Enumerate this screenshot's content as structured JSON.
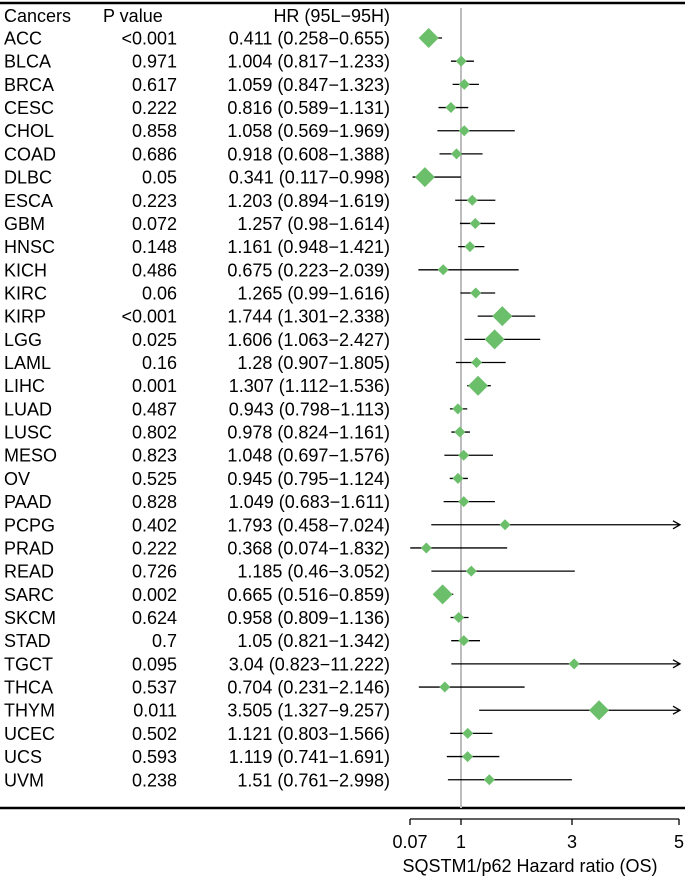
{
  "chart_data": {
    "type": "forest",
    "headers": {
      "cancer": "Cancers",
      "pvalue": "P value",
      "hr": "HR (95L−95H)"
    },
    "xlabel": "SQSTM1/p62 Hazard ratio (OS)",
    "xticks": [
      "0.07",
      "1",
      "3",
      "5"
    ],
    "xlim": [
      0.07,
      5
    ],
    "reference_line": 1,
    "marker_color": "#6cbf6a",
    "rows": [
      {
        "cancer": "ACC",
        "p": "<0.001",
        "hr": 0.411,
        "lower": 0.258,
        "upper": 0.655,
        "hr_text": "0.411 (0.258−0.655)"
      },
      {
        "cancer": "BLCA",
        "p": "0.971",
        "hr": 1.004,
        "lower": 0.817,
        "upper": 1.233,
        "hr_text": "1.004 (0.817−1.233)"
      },
      {
        "cancer": "BRCA",
        "p": "0.617",
        "hr": 1.059,
        "lower": 0.847,
        "upper": 1.323,
        "hr_text": "1.059 (0.847−1.323)"
      },
      {
        "cancer": "CESC",
        "p": "0.222",
        "hr": 0.816,
        "lower": 0.589,
        "upper": 1.131,
        "hr_text": "0.816 (0.589−1.131)"
      },
      {
        "cancer": "CHOL",
        "p": "0.858",
        "hr": 1.058,
        "lower": 0.569,
        "upper": 1.969,
        "hr_text": "1.058 (0.569−1.969)"
      },
      {
        "cancer": "COAD",
        "p": "0.686",
        "hr": 0.918,
        "lower": 0.608,
        "upper": 1.388,
        "hr_text": "0.918 (0.608−1.388)"
      },
      {
        "cancer": "DLBC",
        "p": "0.05",
        "hr": 0.341,
        "lower": 0.117,
        "upper": 0.998,
        "hr_text": "0.341 (0.117−0.998)"
      },
      {
        "cancer": "ESCA",
        "p": "0.223",
        "hr": 1.203,
        "lower": 0.894,
        "upper": 1.619,
        "hr_text": "1.203 (0.894−1.619)"
      },
      {
        "cancer": "GBM",
        "p": "0.072",
        "hr": 1.257,
        "lower": 0.98,
        "upper": 1.614,
        "hr_text": "1.257 (0.98−1.614)"
      },
      {
        "cancer": "HNSC",
        "p": "0.148",
        "hr": 1.161,
        "lower": 0.948,
        "upper": 1.421,
        "hr_text": "1.161 (0.948−1.421)"
      },
      {
        "cancer": "KICH",
        "p": "0.486",
        "hr": 0.675,
        "lower": 0.223,
        "upper": 2.039,
        "hr_text": "0.675 (0.223−2.039)"
      },
      {
        "cancer": "KIRC",
        "p": "0.06",
        "hr": 1.265,
        "lower": 0.99,
        "upper": 1.616,
        "hr_text": "1.265 (0.99−1.616)"
      },
      {
        "cancer": "KIRP",
        "p": "<0.001",
        "hr": 1.744,
        "lower": 1.301,
        "upper": 2.338,
        "hr_text": "1.744 (1.301−2.338)"
      },
      {
        "cancer": "LGG",
        "p": "0.025",
        "hr": 1.606,
        "lower": 1.063,
        "upper": 2.427,
        "hr_text": "1.606 (1.063−2.427)"
      },
      {
        "cancer": "LAML",
        "p": "0.16",
        "hr": 1.28,
        "lower": 0.907,
        "upper": 1.805,
        "hr_text": "1.28 (0.907−1.805)"
      },
      {
        "cancer": "LIHC",
        "p": "0.001",
        "hr": 1.307,
        "lower": 1.112,
        "upper": 1.536,
        "hr_text": "1.307 (1.112−1.536)"
      },
      {
        "cancer": "LUAD",
        "p": "0.487",
        "hr": 0.943,
        "lower": 0.798,
        "upper": 1.113,
        "hr_text": "0.943 (0.798−1.113)"
      },
      {
        "cancer": "LUSC",
        "p": "0.802",
        "hr": 0.978,
        "lower": 0.824,
        "upper": 1.161,
        "hr_text": "0.978 (0.824−1.161)"
      },
      {
        "cancer": "MESO",
        "p": "0.823",
        "hr": 1.048,
        "lower": 0.697,
        "upper": 1.576,
        "hr_text": "1.048 (0.697−1.576)"
      },
      {
        "cancer": "OV",
        "p": "0.525",
        "hr": 0.945,
        "lower": 0.795,
        "upper": 1.124,
        "hr_text": "0.945 (0.795−1.124)"
      },
      {
        "cancer": "PAAD",
        "p": "0.828",
        "hr": 1.049,
        "lower": 0.683,
        "upper": 1.611,
        "hr_text": "1.049 (0.683−1.611)"
      },
      {
        "cancer": "PCPG",
        "p": "0.402",
        "hr": 1.793,
        "lower": 0.458,
        "upper": 7.024,
        "hr_text": "1.793 (0.458−7.024)"
      },
      {
        "cancer": "PRAD",
        "p": "0.222",
        "hr": 0.368,
        "lower": 0.074,
        "upper": 1.832,
        "hr_text": "0.368 (0.074−1.832)"
      },
      {
        "cancer": "READ",
        "p": "0.726",
        "hr": 1.185,
        "lower": 0.46,
        "upper": 3.052,
        "hr_text": "1.185 (0.46−3.052)"
      },
      {
        "cancer": "SARC",
        "p": "0.002",
        "hr": 0.665,
        "lower": 0.516,
        "upper": 0.859,
        "hr_text": "0.665 (0.516−0.859)"
      },
      {
        "cancer": "SKCM",
        "p": "0.624",
        "hr": 0.958,
        "lower": 0.809,
        "upper": 1.136,
        "hr_text": "0.958 (0.809−1.136)"
      },
      {
        "cancer": "STAD",
        "p": "0.7",
        "hr": 1.05,
        "lower": 0.821,
        "upper": 1.342,
        "hr_text": "1.05 (0.821−1.342)"
      },
      {
        "cancer": "TGCT",
        "p": "0.095",
        "hr": 3.04,
        "lower": 0.823,
        "upper": 11.222,
        "hr_text": "3.04 (0.823−11.222)"
      },
      {
        "cancer": "THCA",
        "p": "0.537",
        "hr": 0.704,
        "lower": 0.231,
        "upper": 2.146,
        "hr_text": "0.704 (0.231−2.146)"
      },
      {
        "cancer": "THYM",
        "p": "0.011",
        "hr": 3.505,
        "lower": 1.327,
        "upper": 9.257,
        "hr_text": "3.505 (1.327−9.257)"
      },
      {
        "cancer": "UCEC",
        "p": "0.502",
        "hr": 1.121,
        "lower": 0.803,
        "upper": 1.566,
        "hr_text": "1.121 (0.803−1.566)"
      },
      {
        "cancer": "UCS",
        "p": "0.593",
        "hr": 1.119,
        "lower": 0.741,
        "upper": 1.691,
        "hr_text": "1.119 (0.741−1.691)"
      },
      {
        "cancer": "UVM",
        "p": "0.238",
        "hr": 1.51,
        "lower": 0.761,
        "upper": 2.998,
        "hr_text": "1.51 (0.761−2.998)"
      }
    ]
  }
}
